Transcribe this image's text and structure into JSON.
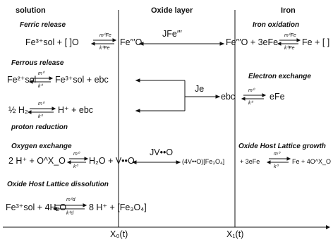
{
  "headers": {
    "solution": "solution",
    "oxide": "Oxide layer",
    "iron": "Iron"
  },
  "sections": {
    "ferric_release": "Ferric release",
    "iron_oxidation": "Iron oxidation",
    "ferrous_release": "Ferrous release",
    "electron_exchange": "Electron exchange",
    "proton_reduction": "proton reduction",
    "oxygen_exchange": "Oxygen exchange",
    "host_growth": "Oxide Host Lattice growth",
    "host_dissolution": "Oxide Host Lattice dissolution"
  },
  "eq1": {
    "left": "Fe³⁺sol + [ ]O",
    "rate_top": "m⁰Fe",
    "rate_bot": "k⁰Fe",
    "mid": "Fe′′′O",
    "flux": "JFe′′′",
    "right": "Fe′′′O + 3eFe",
    "rate2_top": "m⁰Fe",
    "rate2_bot": "k⁰Fe",
    "prod": "Fe + [ ]"
  },
  "eq2": {
    "left": "Fe²⁺sol",
    "rate_top": "m⁰",
    "rate_bot": "k⁰",
    "right": "Fe³⁺sol + ebc"
  },
  "eq3": {
    "left": "½ H₂",
    "rate_top": "m⁰",
    "rate_bot": "k⁰",
    "right": "H⁺ + ebc"
  },
  "electron": {
    "flux": "Je",
    "ebc": "ebc",
    "rate_top": "m⁰",
    "rate_bot": "k⁰",
    "efe": "eFe"
  },
  "eq4": {
    "left": "2 H⁺ + O^X_O",
    "rate_top": "m⁰",
    "rate_bot": "k⁰",
    "right": "H₂O + V••O",
    "flux": "JV••O",
    "oxide": "(4V••O)[Fe₃O₄]",
    "right2": "+ 3eFe",
    "rate2_top": "m⁰",
    "rate2_bot": "k⁰",
    "prod": "Fe + 4O^X_O"
  },
  "eq5": {
    "text": "Fe³⁺sol + 4H₂O",
    "rate_top": "m⁰d",
    "rate_bot": "k⁰d",
    "right": "8 H⁺ + [Fe₃O₄]"
  },
  "axis": {
    "x0": "X₀(t)",
    "x1": "X₁(t)"
  }
}
